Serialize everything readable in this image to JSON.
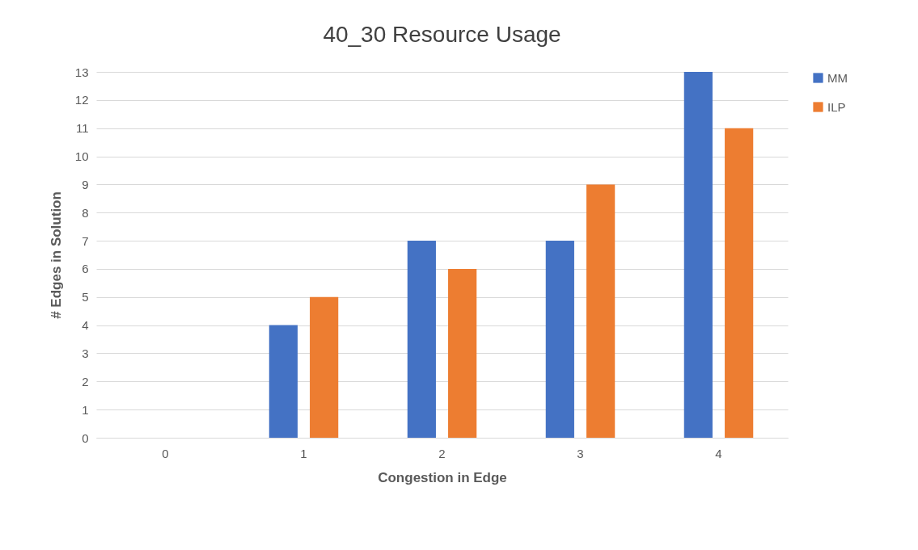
{
  "chart_data": {
    "type": "bar",
    "title": "40_30 Resource Usage",
    "xlabel": "Congestion in Edge",
    "ylabel": "# Edges in Solution",
    "categories": [
      "0",
      "1",
      "2",
      "3",
      "4"
    ],
    "series": [
      {
        "name": "MM",
        "color": "#4472c4",
        "values": [
          0,
          4,
          7,
          7,
          13
        ]
      },
      {
        "name": "ILP",
        "color": "#ed7d31",
        "values": [
          0,
          5,
          6,
          9,
          11
        ]
      }
    ],
    "ylim": [
      0,
      13
    ],
    "yticks": [
      0,
      1,
      2,
      3,
      4,
      5,
      6,
      7,
      8,
      9,
      10,
      11,
      12,
      13
    ],
    "grid": "y",
    "legend": "right"
  }
}
